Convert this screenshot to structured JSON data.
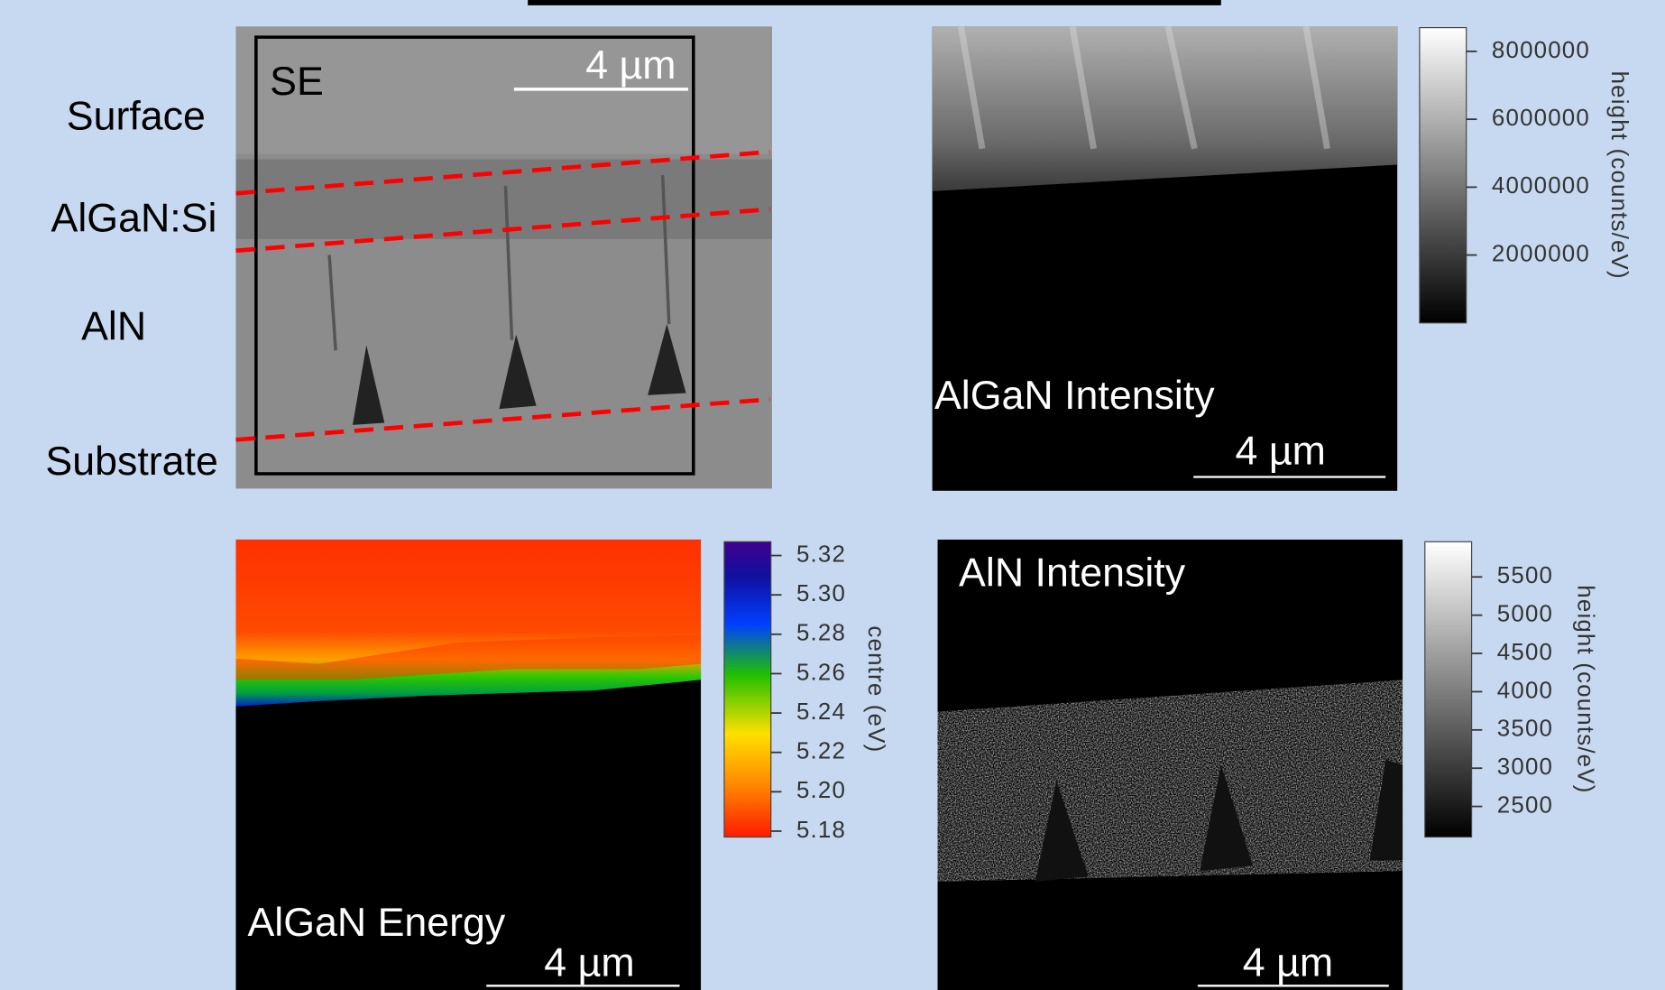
{
  "panels": {
    "se": {
      "label": "SE",
      "scale_bar": "4 µm",
      "layers": [
        "Surface",
        "AlGaN:Si",
        "AlN",
        "Substrate"
      ]
    },
    "algan_intensity": {
      "label": "AlGaN Intensity",
      "scale_bar": "4 µm",
      "colorbar": {
        "label": "height (counts/eV)",
        "lim": [
          0,
          8700000
        ],
        "ticks": [
          2000000,
          4000000,
          6000000,
          8000000
        ]
      }
    },
    "algan_energy": {
      "label": "AlGaN Energy",
      "scale_bar": "4 µm",
      "colorbar": {
        "label": "centre (eV)",
        "lim": [
          5.177,
          5.327
        ],
        "ticks": [
          5.18,
          {
            "value": 5.2,
            "label": "5.20"
          },
          5.22,
          5.24,
          5.26,
          5.28,
          {
            "value": 5.3,
            "label": "5.30"
          },
          5.32
        ]
      }
    },
    "aln_intensity": {
      "label": "AlN Intensity",
      "scale_bar": "4 µm",
      "colorbar": {
        "label": "height (counts/eV)",
        "lim": [
          2100,
          5960
        ],
        "ticks": [
          2500,
          3000,
          3500,
          4000,
          4500,
          5000,
          5500
        ]
      }
    }
  }
}
